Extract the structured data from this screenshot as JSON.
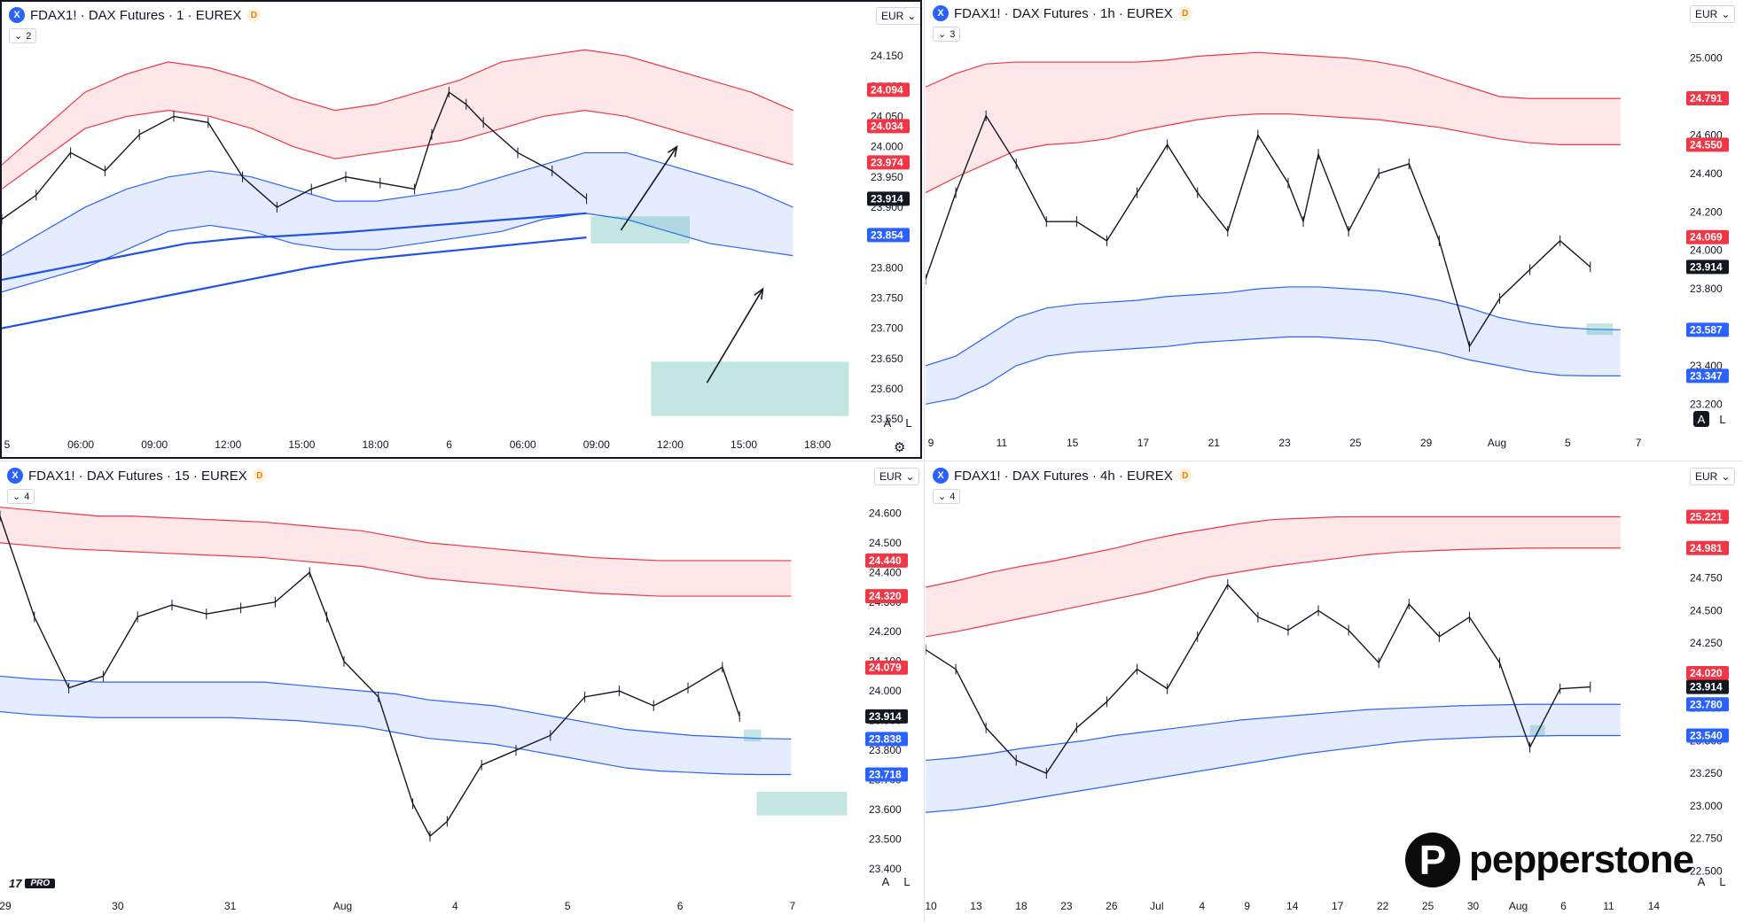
{
  "brand": {
    "name": "pepperstone",
    "icon": "pepperstone-p-logo"
  },
  "tv_logo": {
    "mark": "17",
    "badge": "PRO"
  },
  "colors": {
    "red_band": "#f23645",
    "blue_band": "#2962ff",
    "green_zone": "#26a69a",
    "last_price": "#131722"
  },
  "panes": [
    {
      "id": "m1",
      "symbol": "FDAX1! · DAX Futures · 1 · EUREX",
      "indicator_count": "2",
      "currency": "EUR",
      "active": true,
      "chart_data": {
        "type": "line",
        "title": "",
        "xlabel": "",
        "ylabel": "",
        "ylim": [
          23540,
          24175
        ],
        "y_ticks": [
          "24.150",
          "24.100",
          "24.050",
          "24.000",
          "23.950",
          "23.900",
          "23.850",
          "23.800",
          "23.750",
          "23.700",
          "23.650",
          "23.600",
          "23.550"
        ],
        "x_ticks": [
          "5",
          "06:00",
          "09:00",
          "12:00",
          "15:00",
          "18:00",
          "6",
          "06:00",
          "09:00",
          "12:00",
          "15:00",
          "18:00"
        ],
        "price_labels": [
          {
            "text": "24.094",
            "value": 24094,
            "color": "red"
          },
          {
            "text": "24.034",
            "value": 24034,
            "color": "red"
          },
          {
            "text": "23.974",
            "value": 23974,
            "color": "red"
          },
          {
            "text": "23.914",
            "value": 23914,
            "color": "black"
          },
          {
            "text": "23.854",
            "value": 23854,
            "color": "blue"
          }
        ],
        "price_x": [
          0,
          0.04,
          0.08,
          0.12,
          0.16,
          0.2,
          0.24,
          0.28,
          0.32,
          0.36,
          0.4,
          0.44,
          0.48,
          0.5,
          0.52,
          0.54,
          0.56,
          0.6,
          0.64,
          0.68
        ],
        "price": [
          23880,
          23920,
          23990,
          23960,
          24020,
          24050,
          24040,
          23950,
          23900,
          23930,
          23950,
          23940,
          23930,
          24020,
          24090,
          24070,
          24040,
          23990,
          23960,
          23914
        ],
        "red_upper": [
          23970,
          24030,
          24090,
          24120,
          24140,
          24130,
          24110,
          24080,
          24060,
          24070,
          24090,
          24110,
          24140,
          24150,
          24160,
          24150,
          24130,
          24110,
          24090,
          24060
        ],
        "red_lower": [
          23930,
          23980,
          24030,
          24050,
          24060,
          24050,
          24030,
          24000,
          23980,
          23990,
          24000,
          24010,
          24030,
          24050,
          24060,
          24050,
          24030,
          24010,
          23990,
          23970
        ],
        "blue_upper": [
          23820,
          23860,
          23900,
          23930,
          23950,
          23960,
          23950,
          23930,
          23910,
          23910,
          23920,
          23930,
          23950,
          23970,
          23990,
          23990,
          23970,
          23950,
          23930,
          23900
        ],
        "blue_lower": [
          23760,
          23780,
          23800,
          23830,
          23860,
          23870,
          23860,
          23840,
          23830,
          23830,
          23840,
          23850,
          23860,
          23880,
          23890,
          23880,
          23860,
          23840,
          23830,
          23820
        ],
        "vwap1": [
          23780,
          23790,
          23800,
          23810,
          23820,
          23830,
          23840,
          23845,
          23850,
          23852,
          23855,
          23858,
          23862,
          23866,
          23870,
          23874,
          23878,
          23882,
          23886,
          23890
        ],
        "vwap2": [
          23700,
          23710,
          23720,
          23730,
          23740,
          23750,
          23760,
          23770,
          23780,
          23790,
          23800,
          23808,
          23815,
          23820,
          23825,
          23830,
          23835,
          23840,
          23845,
          23850
        ],
        "zones": [
          {
            "x0": 0.685,
            "x1": 0.8,
            "y0": 23885,
            "y1": 23840
          },
          {
            "x0": 0.755,
            "x1": 0.985,
            "y0": 23645,
            "y1": 23555
          }
        ],
        "arrows": [
          {
            "x0": 0.72,
            "y0": 23862,
            "x1": 0.785,
            "y1": 24000
          },
          {
            "x0": 0.82,
            "y0": 23610,
            "x1": 0.885,
            "y1": 23765
          }
        ]
      }
    },
    {
      "id": "h1",
      "symbol": "FDAX1! · DAX Futures · 1h · EUREX",
      "indicator_count": "3",
      "currency": "EUR",
      "chart_data": {
        "type": "line",
        "title": "",
        "xlabel": "",
        "ylabel": "",
        "ylim": [
          23100,
          25100
        ],
        "y_ticks": [
          "25.000",
          "24.800",
          "24.600",
          "24.400",
          "24.200",
          "24.000",
          "23.800",
          "23.600",
          "23.400",
          "23.200"
        ],
        "x_ticks": [
          "9",
          "11",
          "15",
          "17",
          "21",
          "23",
          "25",
          "29",
          "Aug",
          "5",
          "7"
        ],
        "price_labels": [
          {
            "text": "24.791",
            "value": 24791,
            "color": "red"
          },
          {
            "text": "24.550",
            "value": 24550,
            "color": "red"
          },
          {
            "text": "24.069",
            "value": 24069,
            "color": "red"
          },
          {
            "text": "23.914",
            "value": 23914,
            "color": "black"
          },
          {
            "text": "23.587",
            "value": 23587,
            "color": "blue"
          },
          {
            "text": "23.347",
            "value": 23347,
            "color": "blue"
          }
        ],
        "price_x": [
          0,
          0.04,
          0.08,
          0.12,
          0.16,
          0.2,
          0.24,
          0.28,
          0.32,
          0.36,
          0.4,
          0.44,
          0.48,
          0.5,
          0.52,
          0.56,
          0.6,
          0.64,
          0.68,
          0.72,
          0.76,
          0.8,
          0.84,
          0.88
        ],
        "price": [
          23850,
          24300,
          24700,
          24450,
          24150,
          24150,
          24050,
          24300,
          24550,
          24300,
          24100,
          24600,
          24350,
          24150,
          24500,
          24100,
          24400,
          24450,
          24050,
          23500,
          23750,
          23900,
          24050,
          23914
        ],
        "red_upper": [
          24850,
          24920,
          24970,
          24980,
          24980,
          24980,
          24980,
          24980,
          24990,
          25010,
          25020,
          25030,
          25020,
          25010,
          25000,
          24980,
          24950,
          24900,
          24850,
          24800,
          24790,
          24790,
          24790,
          24790
        ],
        "red_lower": [
          24300,
          24380,
          24450,
          24520,
          24550,
          24560,
          24580,
          24620,
          24650,
          24680,
          24700,
          24710,
          24710,
          24700,
          24690,
          24680,
          24660,
          24640,
          24610,
          24580,
          24560,
          24550,
          24550,
          24550
        ],
        "blue_upper": [
          23400,
          23450,
          23550,
          23650,
          23700,
          23720,
          23730,
          23740,
          23760,
          23770,
          23780,
          23800,
          23810,
          23810,
          23800,
          23790,
          23770,
          23740,
          23700,
          23650,
          23620,
          23600,
          23590,
          23587
        ],
        "blue_lower": [
          23200,
          23230,
          23300,
          23400,
          23450,
          23470,
          23480,
          23490,
          23500,
          23520,
          23530,
          23540,
          23550,
          23550,
          23540,
          23530,
          23500,
          23470,
          23430,
          23400,
          23370,
          23350,
          23347,
          23347
        ],
        "zones": [
          {
            "x0": 0.875,
            "x1": 0.91,
            "y0": 23620,
            "y1": 23560
          }
        ],
        "arrows": []
      }
    },
    {
      "id": "m15",
      "symbol": "FDAX1! · DAX Futures · 15 · EUREX",
      "indicator_count": "4",
      "currency": "EUR",
      "chart_data": {
        "type": "line",
        "title": "",
        "xlabel": "",
        "ylabel": "",
        "ylim": [
          23340,
          24640
        ],
        "y_ticks": [
          "24.600",
          "24.500",
          "24.400",
          "24.300",
          "24.200",
          "24.100",
          "24.000",
          "23.900",
          "23.800",
          "23.700",
          "23.600",
          "23.500",
          "23.400"
        ],
        "x_ticks": [
          "29",
          "30",
          "31",
          "Aug",
          "4",
          "5",
          "6",
          "7"
        ],
        "price_labels": [
          {
            "text": "24.440",
            "value": 24440,
            "color": "red"
          },
          {
            "text": "24.320",
            "value": 24320,
            "color": "red"
          },
          {
            "text": "24.079",
            "value": 24079,
            "color": "red"
          },
          {
            "text": "23.914",
            "value": 23914,
            "color": "black"
          },
          {
            "text": "23.838",
            "value": 23838,
            "color": "blue"
          },
          {
            "text": "23.718",
            "value": 23718,
            "color": "blue"
          }
        ],
        "price_x": [
          0,
          0.04,
          0.08,
          0.12,
          0.16,
          0.2,
          0.24,
          0.28,
          0.32,
          0.36,
          0.38,
          0.4,
          0.44,
          0.48,
          0.5,
          0.52,
          0.56,
          0.6,
          0.64,
          0.68,
          0.72,
          0.76,
          0.8,
          0.84,
          0.86
        ],
        "price": [
          24590,
          24250,
          24010,
          24050,
          24250,
          24290,
          24260,
          24280,
          24300,
          24400,
          24250,
          24100,
          23980,
          23620,
          23510,
          23560,
          23750,
          23800,
          23850,
          23980,
          24000,
          23950,
          24010,
          24080,
          23914
        ],
        "red_upper": [
          24620,
          24610,
          24600,
          24590,
          24590,
          24585,
          24580,
          24575,
          24570,
          24560,
          24550,
          24540,
          24520,
          24500,
          24490,
          24480,
          24470,
          24460,
          24450,
          24445,
          24440,
          24440,
          24440,
          24440,
          24440
        ],
        "red_lower": [
          24500,
          24490,
          24480,
          24475,
          24470,
          24465,
          24460,
          24455,
          24450,
          24440,
          24430,
          24420,
          24400,
          24380,
          24370,
          24360,
          24350,
          24340,
          24330,
          24325,
          24320,
          24320,
          24320,
          24320,
          24320
        ],
        "blue_upper": [
          24050,
          24040,
          24035,
          24030,
          24030,
          24030,
          24030,
          24030,
          24030,
          24020,
          24010,
          24000,
          23990,
          23970,
          23960,
          23950,
          23930,
          23910,
          23890,
          23870,
          23860,
          23850,
          23845,
          23840,
          23838
        ],
        "blue_lower": [
          23930,
          23920,
          23915,
          23910,
          23910,
          23910,
          23910,
          23910,
          23905,
          23900,
          23890,
          23880,
          23860,
          23840,
          23830,
          23820,
          23800,
          23780,
          23760,
          23740,
          23730,
          23725,
          23720,
          23718,
          23718
        ],
        "zones": [
          {
            "x0": 0.865,
            "x1": 0.885,
            "y0": 23870,
            "y1": 23830
          },
          {
            "x0": 0.88,
            "x1": 0.985,
            "y0": 23660,
            "y1": 23580
          }
        ],
        "arrows": []
      }
    },
    {
      "id": "h4",
      "symbol": "FDAX1! · DAX Futures · 4h · EUREX",
      "indicator_count": "4",
      "currency": "EUR",
      "chart_data": {
        "type": "line",
        "title": "",
        "xlabel": "",
        "ylabel": "",
        "ylim": [
          22380,
          25340
        ],
        "y_ticks": [
          "25.000",
          "24.750",
          "24.500",
          "24.250",
          "24.000",
          "23.750",
          "23.500",
          "23.250",
          "23.000",
          "22.750",
          "22.500"
        ],
        "x_ticks": [
          "10",
          "13",
          "18",
          "23",
          "26",
          "Jul",
          "4",
          "9",
          "14",
          "17",
          "22",
          "25",
          "30",
          "Aug",
          "6",
          "11",
          "14"
        ],
        "price_labels": [
          {
            "text": "25.221",
            "value": 25221,
            "color": "red"
          },
          {
            "text": "24.981",
            "value": 24981,
            "color": "red"
          },
          {
            "text": "24.020",
            "value": 24020,
            "color": "red"
          },
          {
            "text": "23.914",
            "value": 23914,
            "color": "black"
          },
          {
            "text": "23.780",
            "value": 23780,
            "color": "blue"
          },
          {
            "text": "23.540",
            "value": 23540,
            "color": "blue"
          }
        ],
        "price_x": [
          0,
          0.04,
          0.08,
          0.12,
          0.16,
          0.2,
          0.24,
          0.28,
          0.32,
          0.36,
          0.4,
          0.44,
          0.48,
          0.52,
          0.56,
          0.6,
          0.64,
          0.68,
          0.72,
          0.76,
          0.8,
          0.84,
          0.88
        ],
        "price": [
          24200,
          24050,
          23600,
          23350,
          23250,
          23600,
          23800,
          24050,
          23900,
          24300,
          24700,
          24450,
          24350,
          24500,
          24350,
          24100,
          24550,
          24300,
          24450,
          24100,
          23450,
          23900,
          23914
        ],
        "red_upper": [
          24680,
          24730,
          24790,
          24840,
          24880,
          24930,
          24980,
          25040,
          25090,
          25130,
          25170,
          25200,
          25210,
          25220,
          25221,
          25221,
          25221,
          25221,
          25221,
          25221,
          25221,
          25221,
          25221
        ],
        "red_lower": [
          24300,
          24340,
          24390,
          24440,
          24490,
          24540,
          24590,
          24640,
          24700,
          24760,
          24800,
          24840,
          24870,
          24900,
          24930,
          24950,
          24960,
          24970,
          24975,
          24980,
          24981,
          24981,
          24981
        ],
        "blue_upper": [
          23350,
          23370,
          23400,
          23440,
          23470,
          23500,
          23540,
          23570,
          23600,
          23630,
          23660,
          23680,
          23700,
          23720,
          23740,
          23750,
          23760,
          23770,
          23775,
          23780,
          23780,
          23780,
          23780
        ],
        "blue_lower": [
          22950,
          22970,
          23000,
          23040,
          23080,
          23120,
          23160,
          23200,
          23240,
          23280,
          23320,
          23360,
          23400,
          23430,
          23460,
          23490,
          23510,
          23520,
          23530,
          23535,
          23540,
          23540,
          23540
        ],
        "zones": [
          {
            "x0": 0.8,
            "x1": 0.82,
            "y0": 23620,
            "y1": 23540
          }
        ],
        "arrows": []
      }
    }
  ]
}
